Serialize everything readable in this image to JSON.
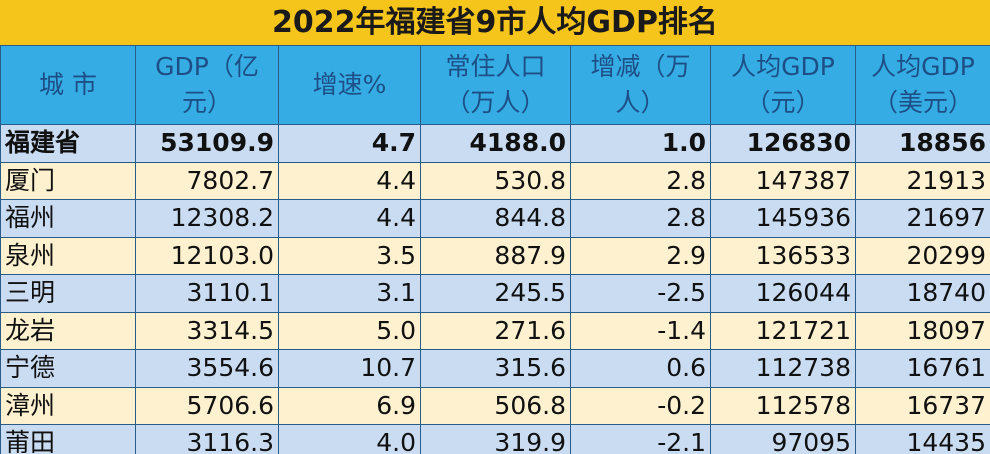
{
  "header": {
    "title": "2022年福建省9市人均GDP排名"
  },
  "table": {
    "columns": [
      "城 市",
      "GDP（亿元）",
      "增速%",
      "常住人口（万人）",
      "增减（万人）",
      "人均GDP（元）",
      "人均GDP（美元）"
    ],
    "rows": [
      [
        "福建省",
        "53109.9",
        "4.7",
        "4188.0",
        "1.0",
        "126830",
        "18856"
      ],
      [
        "厦门",
        "7802.7",
        "4.4",
        "530.8",
        "2.8",
        "147387",
        "21913"
      ],
      [
        "福州",
        "12308.2",
        "4.4",
        "844.8",
        "2.8",
        "145936",
        "21697"
      ],
      [
        "泉州",
        "12103.0",
        "3.5",
        "887.9",
        "2.9",
        "136533",
        "20299"
      ],
      [
        "三明",
        "3110.1",
        "3.1",
        "245.5",
        "-2.5",
        "126044",
        "18740"
      ],
      [
        "龙岩",
        "3314.5",
        "5.0",
        "271.6",
        "-1.4",
        "121721",
        "18097"
      ],
      [
        "宁德",
        "3554.6",
        "10.7",
        "315.6",
        "0.6",
        "112738",
        "16761"
      ],
      [
        "漳州",
        "5706.6",
        "6.9",
        "506.8",
        "-0.2",
        "112578",
        "16737"
      ],
      [
        "莆田",
        "3116.3",
        "4.0",
        "319.9",
        "-2.1",
        "97095",
        "14435"
      ]
    ]
  }
}
